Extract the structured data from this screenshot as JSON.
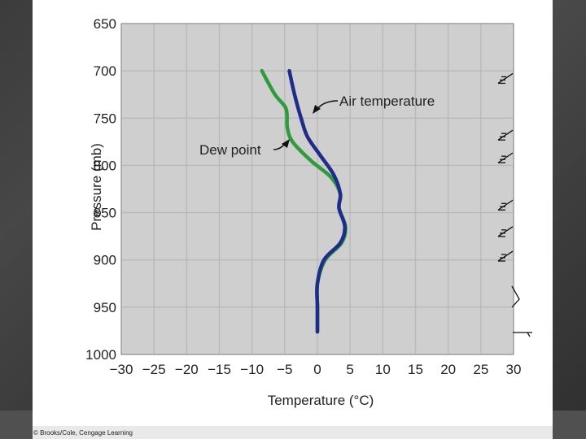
{
  "chart_data": {
    "type": "line",
    "title": "",
    "xlabel": "Temperature (°C)",
    "ylabel": "Pressure (mb)",
    "x_ticks": [
      -30,
      -25,
      -20,
      -15,
      -10,
      -5,
      0,
      5,
      10,
      15,
      20,
      25,
      30
    ],
    "x_tick_labels": [
      "−30",
      "−25",
      "−20",
      "−15",
      "−10",
      "−5",
      "0",
      "5",
      "10",
      "15",
      "20",
      "25",
      "30"
    ],
    "y_ticks": [
      650,
      700,
      750,
      800,
      850,
      900,
      950,
      1000
    ],
    "y_tick_labels": [
      "650",
      "700",
      "750",
      "800",
      "850",
      "900",
      "950",
      "1000"
    ],
    "xlim": [
      -30,
      30
    ],
    "ylim": [
      1000,
      650
    ],
    "grid": true,
    "series": [
      {
        "name": "Air temperature",
        "color": "#1f2d8a",
        "points": [
          [
            -4.3,
            700
          ],
          [
            -3.5,
            725
          ],
          [
            -2.5,
            750
          ],
          [
            -1.5,
            770
          ],
          [
            0.5,
            790
          ],
          [
            2.5,
            810
          ],
          [
            3.5,
            830
          ],
          [
            3.3,
            845
          ],
          [
            4.2,
            865
          ],
          [
            3.5,
            882
          ],
          [
            1,
            900
          ],
          [
            0,
            925
          ],
          [
            0,
            950
          ],
          [
            0,
            976
          ]
        ]
      },
      {
        "name": "Dew point",
        "color": "#2e9b3c",
        "points": [
          [
            -8.5,
            700
          ],
          [
            -6.5,
            725
          ],
          [
            -4.8,
            740
          ],
          [
            -4.6,
            760
          ],
          [
            -3.8,
            775
          ],
          [
            -1,
            795
          ],
          [
            2,
            812
          ],
          [
            3.5,
            830
          ],
          [
            3.3,
            845
          ],
          [
            4.3,
            865
          ],
          [
            3.7,
            882
          ],
          [
            1.2,
            900
          ],
          [
            0,
            925
          ],
          [
            0,
            950
          ],
          [
            0,
            976
          ]
        ]
      }
    ],
    "annotations": [
      {
        "text": "Air temperature",
        "series": "Air temperature"
      },
      {
        "text": "Dew point",
        "series": "Dew point"
      }
    ]
  },
  "wind_barbs": {
    "pressures": [
      708,
      768,
      792,
      842,
      870,
      896
    ],
    "color": "#111111"
  },
  "credit": "© Brooks/Cole, Cengage Learning"
}
